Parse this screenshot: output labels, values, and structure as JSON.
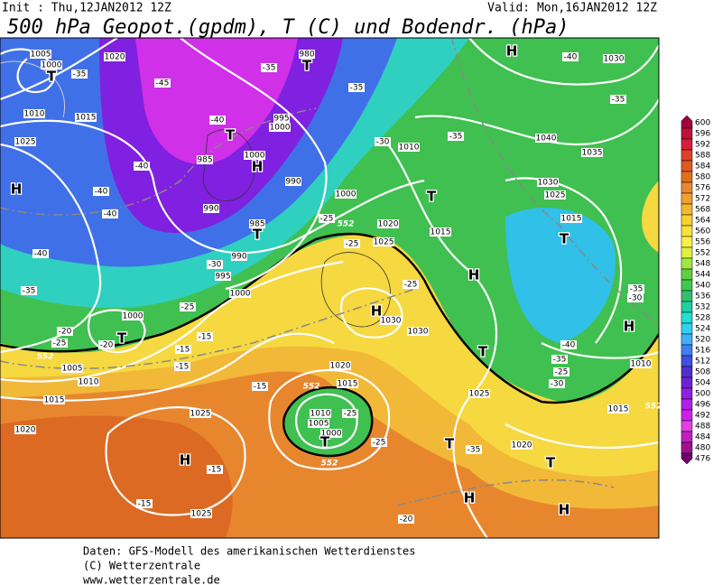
{
  "header": {
    "init": "Init : Thu,12JAN2012 12Z",
    "valid": "Valid: Mon,16JAN2012 12Z",
    "title": "500 hPa Geopot.(gpdm), T (C) und Bodendr. (hPa)"
  },
  "colorbar": {
    "levels": [
      600,
      596,
      592,
      588,
      584,
      580,
      576,
      572,
      568,
      564,
      560,
      556,
      552,
      548,
      544,
      540,
      536,
      532,
      528,
      524,
      520,
      516,
      512,
      508,
      504,
      500,
      496,
      492,
      488,
      484,
      480,
      476
    ],
    "colors": [
      "#a0003c",
      "#c0103c",
      "#d81e3c",
      "#e0402a",
      "#e05a20",
      "#e07020",
      "#e88830",
      "#f0a030",
      "#f0b830",
      "#f8d030",
      "#f8e040",
      "#f8f048",
      "#e0f040",
      "#a0e840",
      "#60d040",
      "#40c850",
      "#30c070",
      "#20d0a0",
      "#20e0d0",
      "#30d0f0",
      "#40b0f8",
      "#4080f0",
      "#4050e0",
      "#5030d0",
      "#7020d0",
      "#9020e0",
      "#b020e8",
      "#d020e8",
      "#e040e0",
      "#c020c0",
      "#a01090",
      "#700070"
    ]
  },
  "map": {
    "centers": [
      "T",
      "H",
      "T",
      "H",
      "T",
      "T",
      "T",
      "H",
      "T",
      "H",
      "T",
      "T",
      "H",
      "H",
      "T",
      "T",
      "H",
      "T",
      "H",
      "H"
    ],
    "labels": [
      "1005",
      "1000",
      "1020",
      "1015",
      "1010",
      "1025",
      "985",
      "1000",
      "995",
      "1000",
      "990",
      "990",
      "985",
      "990",
      "995",
      "1000",
      "1000",
      "1010",
      "1040",
      "1035",
      "1030",
      "1025",
      "1015",
      "1030",
      "1020",
      "1025",
      "1015",
      "1030",
      "1030",
      "1000",
      "1005",
      "1010",
      "1015",
      "1020",
      "1025",
      "1025",
      "1020",
      "1015",
      "1010",
      "1005",
      "1000",
      "1025",
      "1020",
      "1010",
      "1015",
      "980",
      "-35",
      "-45",
      "-40",
      "-35",
      "-35",
      "-30",
      "-35",
      "-40",
      "-35",
      "-40",
      "-40",
      "-40",
      "-40",
      "-35",
      "-30",
      "-25",
      "-25",
      "-25",
      "-25",
      "-20",
      "-15",
      "-15",
      "-15",
      "-15",
      "-20",
      "-25",
      "-15",
      "-15",
      "-20",
      "-25",
      "-25",
      "-35",
      "-30",
      "-40",
      "-35",
      "-25",
      "-35",
      "-30",
      "552",
      "552",
      "552",
      "552",
      "552"
    ]
  },
  "footer": {
    "lines": [
      "Daten: GFS-Modell des amerikanischen Wetterdienstes",
      "(C) Wetterzentrale",
      "www.wetterzentrale.de"
    ]
  }
}
